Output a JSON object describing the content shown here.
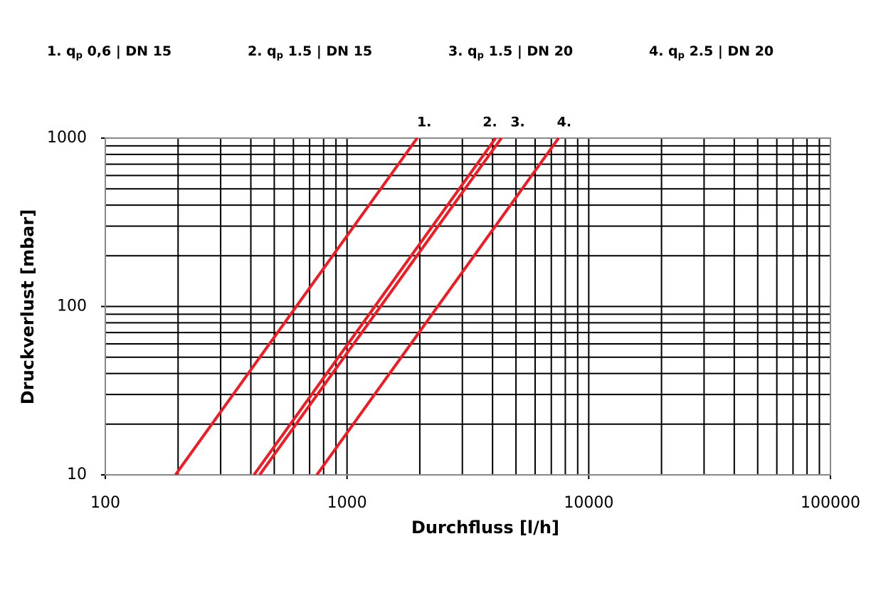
{
  "chart_data": {
    "type": "line",
    "xlabel": "Durchfluss [l/h]",
    "ylabel": "Druckverlust [mbar]",
    "xscale": "log",
    "yscale": "log",
    "xlim": [
      100,
      100000
    ],
    "ylim": [
      10,
      1000
    ],
    "xticks": [
      100,
      1000,
      10000,
      100000
    ],
    "yticks": [
      10,
      100,
      1000
    ],
    "grid": true,
    "series": [
      {
        "name": "1. qp 0,6 | DN 15",
        "color": "#ee1c25",
        "x": [
          195,
          1950
        ],
        "values": [
          10,
          1000
        ]
      },
      {
        "name": "2. qp 1.5 | DN 15",
        "color": "#ee1c25",
        "x": [
          412,
          4120
        ],
        "values": [
          10,
          1000
        ]
      },
      {
        "name": "3. qp 1.5 | DN 20",
        "color": "#ee1c25",
        "x": [
          435,
          4350
        ],
        "values": [
          10,
          1000
        ]
      },
      {
        "name": "4. qp 2.5 | DN 20",
        "color": "#ee1c25",
        "x": [
          750,
          7500
        ],
        "values": [
          10,
          1000
        ]
      }
    ],
    "annotations": [
      "1.",
      "2.",
      "3.",
      "4."
    ]
  }
}
